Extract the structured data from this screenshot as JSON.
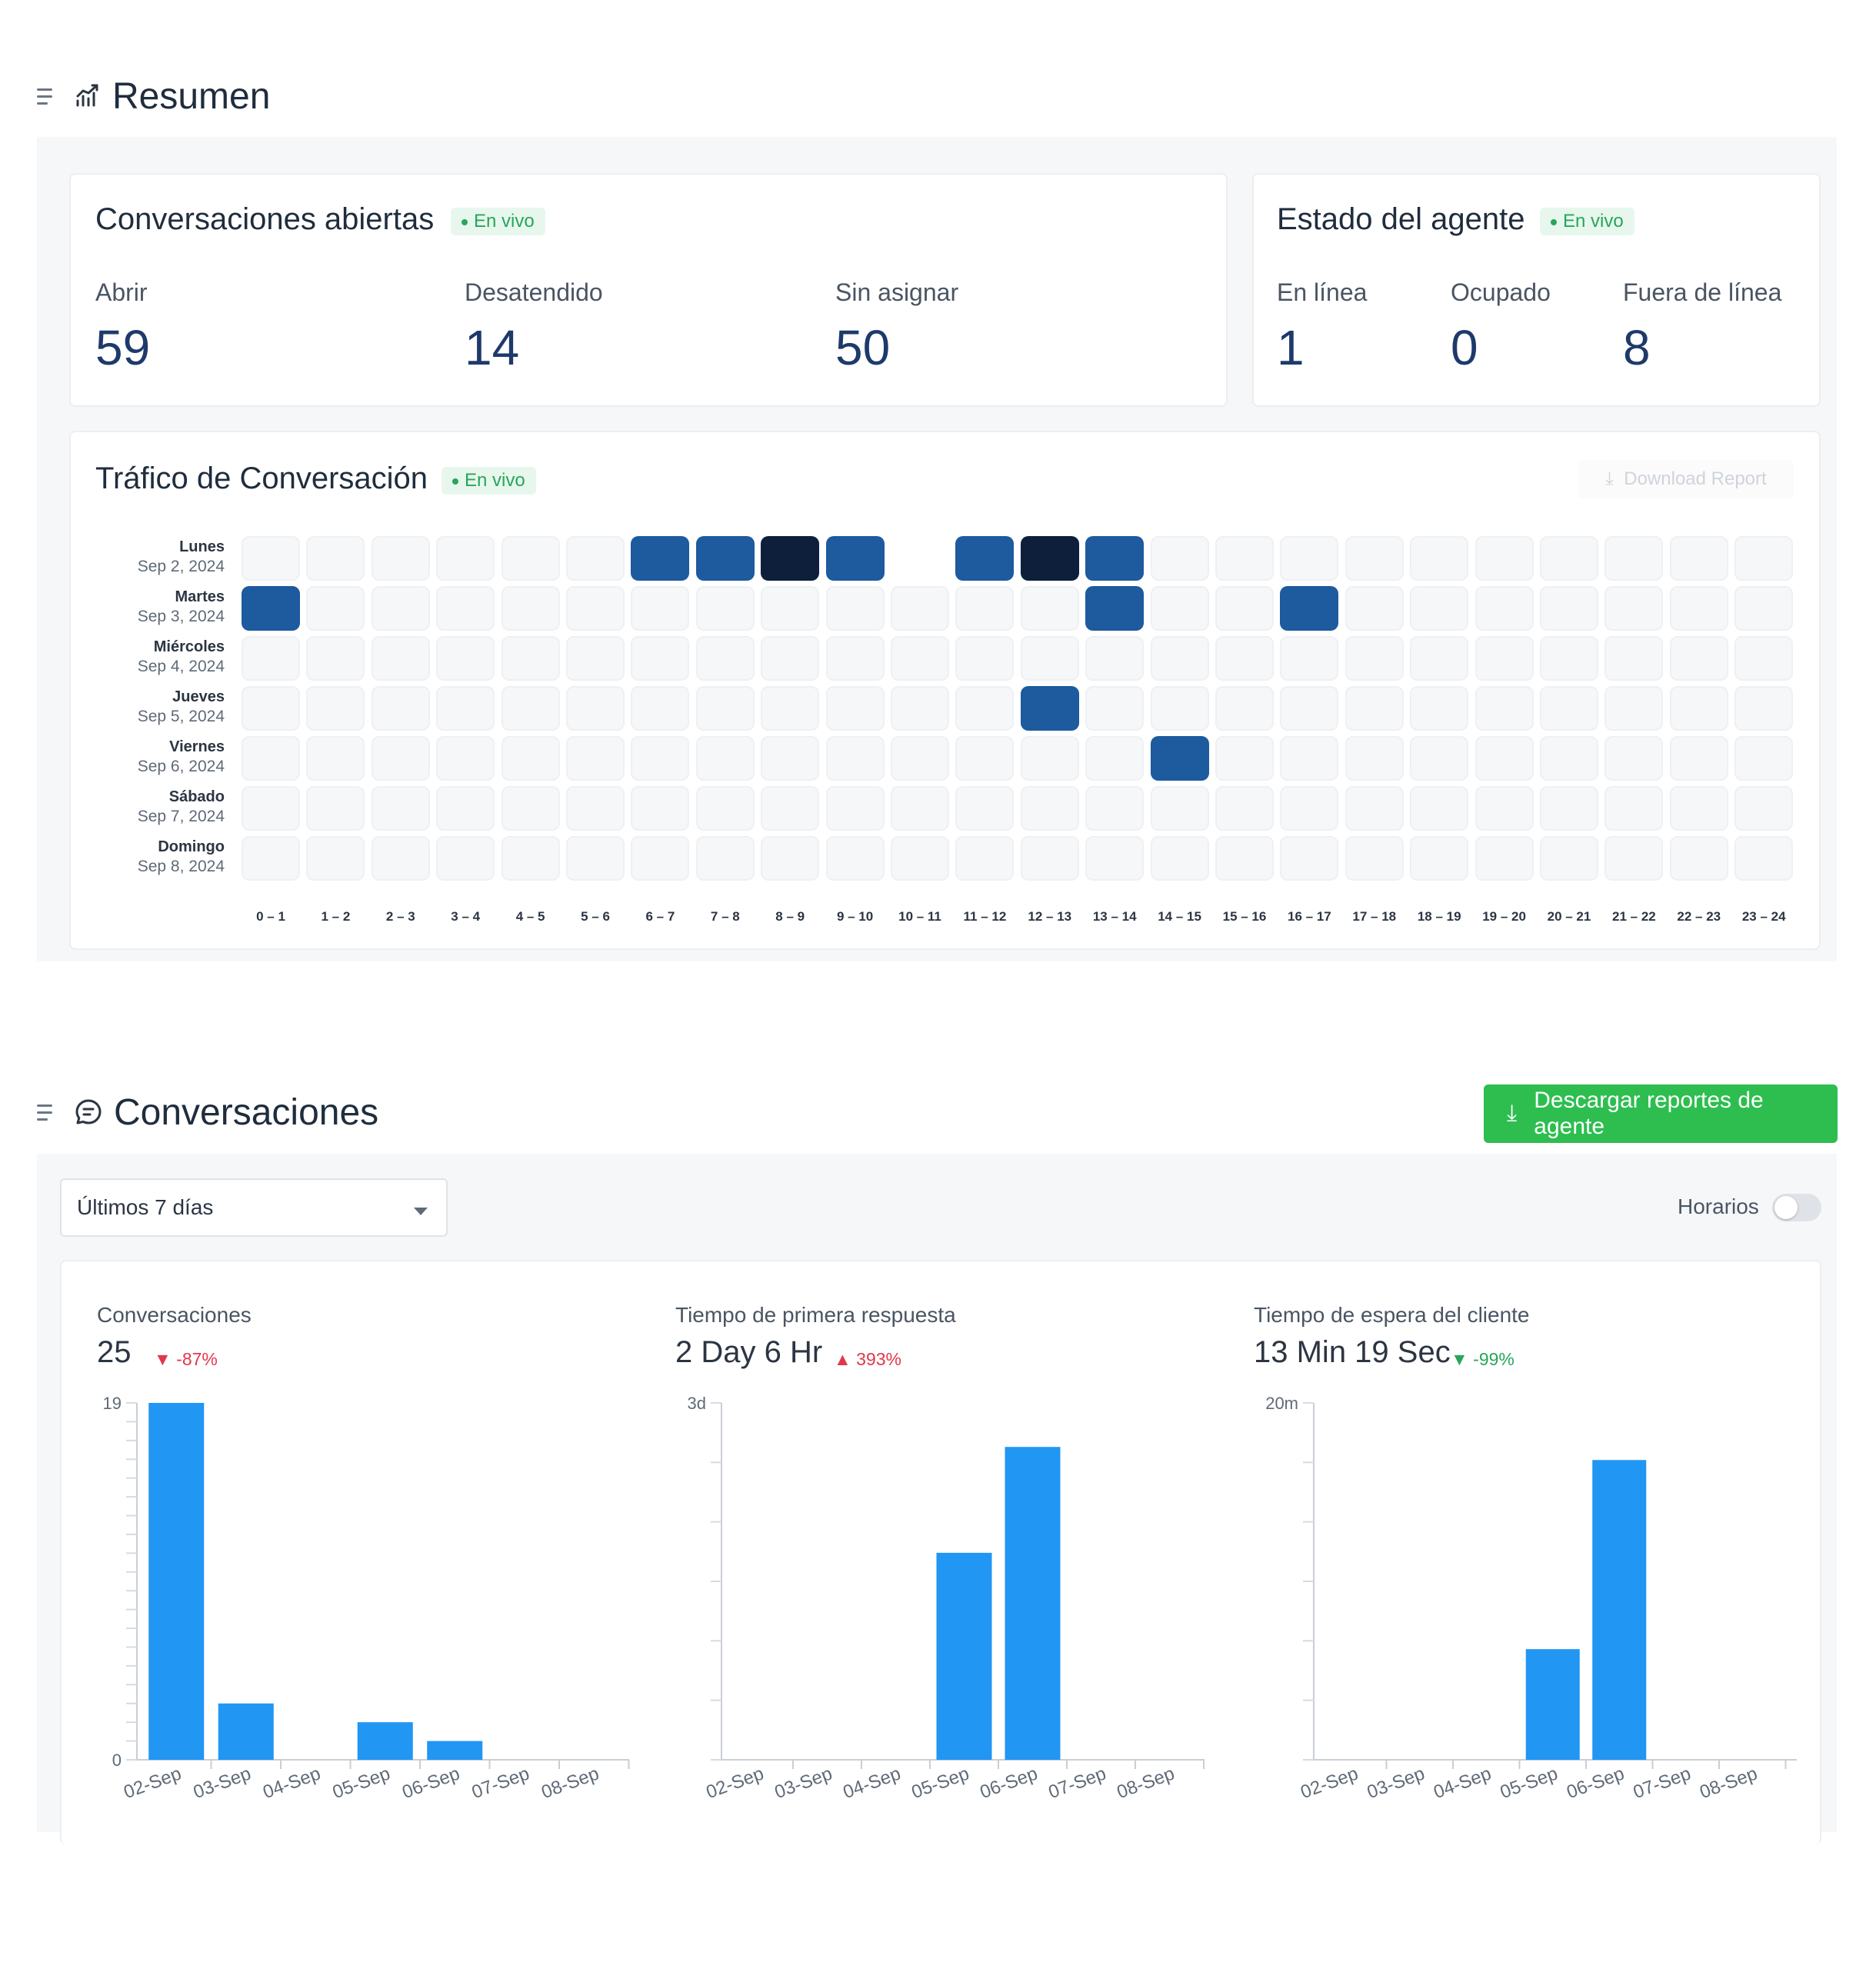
{
  "resumen": {
    "title": "Resumen",
    "open_conversations": {
      "title": "Conversaciones abiertas",
      "live": "En vivo",
      "metrics": [
        {
          "label": "Abrir",
          "value": "59"
        },
        {
          "label": "Desatendido",
          "value": "14"
        },
        {
          "label": "Sin asignar",
          "value": "50"
        }
      ]
    },
    "agent_status": {
      "title": "Estado del agente",
      "live": "En vivo",
      "metrics": [
        {
          "label": "En línea",
          "value": "1"
        },
        {
          "label": "Ocupado",
          "value": "0"
        },
        {
          "label": "Fuera de línea",
          "value": "8"
        }
      ]
    },
    "traffic": {
      "title": "Tráfico de Conversación",
      "live": "En vivo",
      "download_label": "Download Report",
      "days": [
        {
          "day": "Lunes",
          "date": "Sep 2, 2024"
        },
        {
          "day": "Martes",
          "date": "Sep 3, 2024"
        },
        {
          "day": "Miércoles",
          "date": "Sep 4, 2024"
        },
        {
          "day": "Jueves",
          "date": "Sep 5, 2024"
        },
        {
          "day": "Viernes",
          "date": "Sep 6, 2024"
        },
        {
          "day": "Sábado",
          "date": "Sep 7, 2024"
        },
        {
          "day": "Domingo",
          "date": "Sep 8, 2024"
        }
      ],
      "hours": [
        "0 – 1",
        "1 – 2",
        "2 – 3",
        "3 – 4",
        "4 – 5",
        "5 – 6",
        "6 – 7",
        "7 – 8",
        "8 – 9",
        "9 – 10",
        "10 – 11",
        "11 – 12",
        "12 – 13",
        "13 – 14",
        "14 – 15",
        "15 – 16",
        "16 – 17",
        "17 – 18",
        "18 – 19",
        "19 – 20",
        "20 – 21",
        "21 – 22",
        "22 – 23",
        "23 – 24"
      ],
      "intensity": [
        [
          0,
          0,
          0,
          0,
          0,
          0,
          1,
          1,
          2,
          1,
          0,
          1,
          2,
          1,
          0,
          0,
          0,
          0,
          0,
          0,
          0,
          0,
          0,
          0
        ],
        [
          1,
          0,
          0,
          0,
          0,
          0,
          0,
          0,
          0,
          0,
          0,
          0,
          0,
          1,
          0,
          0,
          1,
          0,
          0,
          0,
          0,
          0,
          0,
          0
        ],
        [
          0,
          0,
          0,
          0,
          0,
          0,
          0,
          0,
          0,
          0,
          0,
          0,
          0,
          0,
          0,
          0,
          0,
          0,
          0,
          0,
          0,
          0,
          0,
          0
        ],
        [
          0,
          0,
          0,
          0,
          0,
          0,
          0,
          0,
          0,
          0,
          0,
          0,
          1,
          0,
          0,
          0,
          0,
          0,
          0,
          0,
          0,
          0,
          0,
          0
        ],
        [
          0,
          0,
          0,
          0,
          0,
          0,
          0,
          0,
          0,
          0,
          0,
          0,
          0,
          0,
          1,
          0,
          0,
          0,
          0,
          0,
          0,
          0,
          0,
          0
        ],
        [
          0,
          0,
          0,
          0,
          0,
          0,
          0,
          0,
          0,
          0,
          0,
          0,
          0,
          0,
          0,
          0,
          0,
          0,
          0,
          0,
          0,
          0,
          0,
          0
        ],
        [
          0,
          0,
          0,
          0,
          0,
          0,
          0,
          0,
          0,
          0,
          0,
          0,
          0,
          0,
          0,
          0,
          0,
          0,
          0,
          0,
          0,
          0,
          0,
          0
        ]
      ],
      "colors": {
        "empty": "#f6f7f9",
        "empty_border": "#eef0f3",
        "mid": "#1d5a9e",
        "high": "#0e1f3b",
        "blank": "#ffffff"
      }
    }
  },
  "conversaciones": {
    "title": "Conversaciones",
    "download_agents_label": "Descargar reportes de agente",
    "range_select": "Últimos 7 días",
    "business_hours_label": "Horarios",
    "business_hours_on": false
  },
  "chart_data": [
    {
      "type": "bar",
      "title": "Conversaciones",
      "summary": "25",
      "delta": "-87%",
      "delta_direction": "down",
      "delta_color": "#e0384b",
      "categories": [
        "02-Sep",
        "03-Sep",
        "04-Sep",
        "05-Sep",
        "06-Sep",
        "07-Sep",
        "08-Sep"
      ],
      "values": [
        19,
        3,
        0,
        2,
        1,
        0,
        0
      ],
      "ylim": [
        0,
        19
      ],
      "ytick_labels": [
        "0",
        "19"
      ],
      "bar_color": "#2196f3"
    },
    {
      "type": "bar",
      "title": "Tiempo de primera respuesta",
      "summary": "2 Day 6 Hr",
      "delta": "393%",
      "delta_direction": "up",
      "delta_color": "#e0384b",
      "categories": [
        "02-Sep",
        "03-Sep",
        "04-Sep",
        "05-Sep",
        "06-Sep",
        "07-Sep",
        "08-Sep"
      ],
      "values": [
        0,
        0,
        0,
        1.74,
        2.63,
        0,
        0
      ],
      "value_unit": "days",
      "ylim": [
        0,
        3
      ],
      "ytick_labels": [
        "3d"
      ],
      "bar_color": "#2196f3"
    },
    {
      "type": "bar",
      "title": "Tiempo de espera del cliente",
      "summary": "13 Min 19 Sec",
      "delta": "-99%",
      "delta_direction": "down",
      "delta_color": "#29a55b",
      "categories": [
        "02-Sep",
        "03-Sep",
        "04-Sep",
        "05-Sep",
        "06-Sep",
        "07-Sep",
        "08-Sep"
      ],
      "values": [
        0,
        0,
        0,
        6.2,
        16.8,
        0,
        0
      ],
      "value_unit": "minutes",
      "ylim": [
        0,
        20
      ],
      "ytick_labels": [
        "20m"
      ],
      "bar_color": "#2196f3"
    }
  ]
}
